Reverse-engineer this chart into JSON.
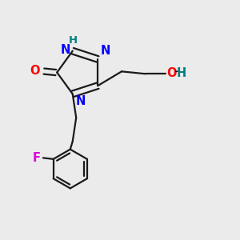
{
  "background_color": "#ebebeb",
  "bond_color": "#1a1a1a",
  "bond_width": 1.6,
  "atom_colors": {
    "N": "#0000ff",
    "O": "#ff0000",
    "F": "#dd00dd",
    "H_label": "#008080",
    "C": "#1a1a1a"
  },
  "font_size": 10.5,
  "fig_size": [
    3.0,
    3.0
  ],
  "dpi": 100
}
